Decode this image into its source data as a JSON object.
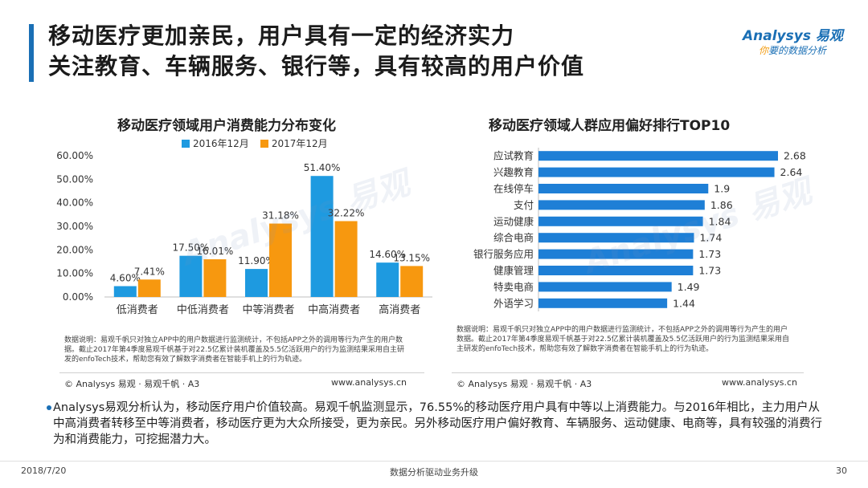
{
  "header": {
    "title_line1": "移动医疗更加亲民，用户具有一定的经济实力",
    "title_line2": "关注教育、车辆服务、银行等，具有较高的用户价值",
    "logo_main": "Analysys 易观",
    "logo_sub_hl": "你",
    "logo_sub": "要的数据分析"
  },
  "left_panel": {
    "note": "数据说明：易观千帆只对独立APP中的用户数据进行监测统计，不包括APP之外的调用等行为产生的用户数据。截止2017年第4季度易观千帆基于对22.5亿累计装机覆盖及5.5亿活跃用户的行为监测结果采用自主研发的enfoTech技术，帮助您有效了解数字消费者在智能手机上的行为轨迹。",
    "copyright": "© Analysys 易观 · 易观千帆 · A3",
    "website": "www.analysys.cn"
  },
  "right_panel": {
    "note": "数据说明：易观千帆只对独立APP中的用户数据进行监测统计，不包括APP之外的调用等行为产生的用户数据。截止2017年第4季度易观千帆基于对22.5亿累计装机覆盖及5.5亿活跃用户的行为监测结果采用自主研发的enfoTech技术，帮助您有效了解数字消费者在智能手机上的行为轨迹。",
    "copyright": "© Analysys 易观 · 易观千帆 · A3",
    "website": "www.analysys.cn"
  },
  "summary": "Analysys易观分析认为，移动医疗用户价值较高。易观千帆监测显示，76.55%的移动医疗用户具有中等以上消费能力。与2016年相比，主力用户从中高消费者转移至中等消费者，移动医疗更为大众所接受，更为亲民。另外移动医疗用户偏好教育、车辆服务、运动健康、电商等，具有较强的消费行为和消费能力，可挖掘潜力大。",
  "footer": {
    "date": "2018/7/20",
    "center": "数据分析驱动业务升级",
    "page": "30"
  },
  "colors": {
    "blue": "#1e9ae0",
    "orange": "#f7980f",
    "bar_blue": "#1e7fd6"
  },
  "chart_data": [
    {
      "type": "bar",
      "title": "移动医疗领域用户消费能力分布变化",
      "categories": [
        "低消费者",
        "中低消费者",
        "中等消费者",
        "中高消费者",
        "高消费者"
      ],
      "series": [
        {
          "name": "2016年12月",
          "values": [
            4.6,
            17.5,
            11.9,
            51.4,
            14.6
          ],
          "labels": [
            "4.60%",
            "17.50%",
            "11.90%",
            "51.40%",
            "14.60%"
          ]
        },
        {
          "name": "2017年12月",
          "values": [
            7.41,
            16.01,
            31.18,
            32.22,
            13.15
          ],
          "labels": [
            "7.41%",
            "16.01%",
            "31.18%",
            "32.22%",
            "13.15%"
          ]
        }
      ],
      "ylim": [
        0,
        60
      ],
      "yticks": [
        "0.00%",
        "10.00%",
        "20.00%",
        "30.00%",
        "40.00%",
        "50.00%",
        "60.00%"
      ],
      "legend": "top",
      "grid": false
    },
    {
      "type": "bar",
      "orientation": "horizontal",
      "title": "移动医疗领域人群应用偏好排行TOP10",
      "categories": [
        "应试教育",
        "兴趣教育",
        "在线停车",
        "支付",
        "运动健康",
        "综合电商",
        "银行服务应用",
        "健康管理",
        "特卖电商",
        "外语学习"
      ],
      "values": [
        2.68,
        2.64,
        1.9,
        1.86,
        1.84,
        1.74,
        1.73,
        1.73,
        1.49,
        1.44
      ],
      "labels": [
        "2.68",
        "2.64",
        "1.9",
        "1.86",
        "1.84",
        "1.74",
        "1.73",
        "1.73",
        "1.49",
        "1.44"
      ],
      "xlim": [
        0,
        2.68
      ],
      "grid": false
    }
  ]
}
